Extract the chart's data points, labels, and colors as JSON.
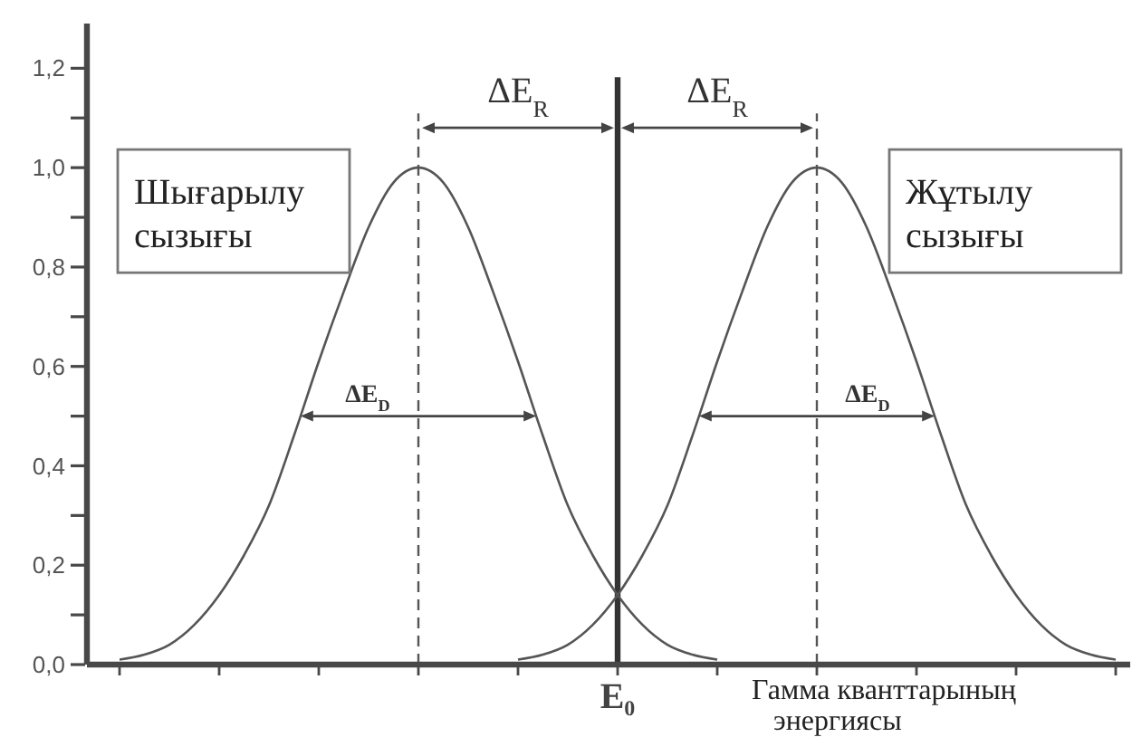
{
  "chart_data": {
    "type": "line",
    "xlabel": "Гамма кванттарының энергиясы",
    "categories": [
      null,
      null,
      null,
      null,
      null,
      null,
      null,
      null,
      null,
      null,
      null,
      null,
      null,
      null,
      null,
      null,
      null,
      null,
      null,
      null,
      "E₀",
      null,
      null,
      null,
      null,
      null,
      null,
      null,
      null,
      null,
      null,
      null,
      null,
      null,
      null,
      null,
      null,
      null,
      null,
      null,
      null
    ],
    "ylim": [
      0,
      1.29
    ],
    "yticks": [
      {
        "value": 0,
        "label": "0,0"
      },
      {
        "value": 0.1,
        "label": null
      },
      {
        "value": 0.2,
        "label": "0,2"
      },
      {
        "value": 0.3,
        "label": null
      },
      {
        "value": 0.4,
        "label": "0,4"
      },
      {
        "value": 0.5,
        "label": null
      },
      {
        "value": 0.6,
        "label": "0,6"
      },
      {
        "value": 0.7,
        "label": null
      },
      {
        "value": 0.8,
        "label": "0,8"
      },
      {
        "value": 0.9,
        "label": null
      },
      {
        "value": 1.0,
        "label": "1,0"
      },
      {
        "value": 1.1,
        "label": null
      },
      {
        "value": 1.2,
        "label": "1,2"
      }
    ],
    "series": [
      {
        "name": "Шығарылу сызығы",
        "color": "#555555",
        "values": [
          0.01,
          0.02,
          0.04,
          0.08,
          0.14,
          0.22,
          0.32,
          0.46,
          0.61,
          0.75,
          0.88,
          0.97,
          1.0,
          0.97,
          0.88,
          0.75,
          0.61,
          0.46,
          0.32,
          0.22,
          0.14,
          0.08,
          0.04,
          0.02,
          0.01,
          null,
          null,
          null,
          null,
          null,
          null,
          null,
          null,
          null,
          null,
          null,
          null,
          null,
          null,
          null,
          null
        ]
      },
      {
        "name": "Жұтылу сызығы",
        "color": "#555555",
        "values": [
          null,
          null,
          null,
          null,
          null,
          null,
          null,
          null,
          null,
          null,
          null,
          null,
          null,
          null,
          null,
          null,
          0.01,
          0.02,
          0.04,
          0.08,
          0.14,
          0.22,
          0.32,
          0.46,
          0.61,
          0.75,
          0.88,
          0.97,
          1.0,
          0.97,
          0.88,
          0.75,
          0.61,
          0.46,
          0.32,
          0.22,
          0.14,
          0.08,
          0.04,
          0.02,
          0.01
        ]
      }
    ],
    "ref_lines": [
      {
        "axis": "x",
        "value": "E₀",
        "color": "#333333"
      }
    ],
    "annotations": [
      "ΔE$_{R}$",
      "ΔE$_{R}$",
      "ΔE$_{D}$",
      "ΔE$_{D}$"
    ]
  }
}
